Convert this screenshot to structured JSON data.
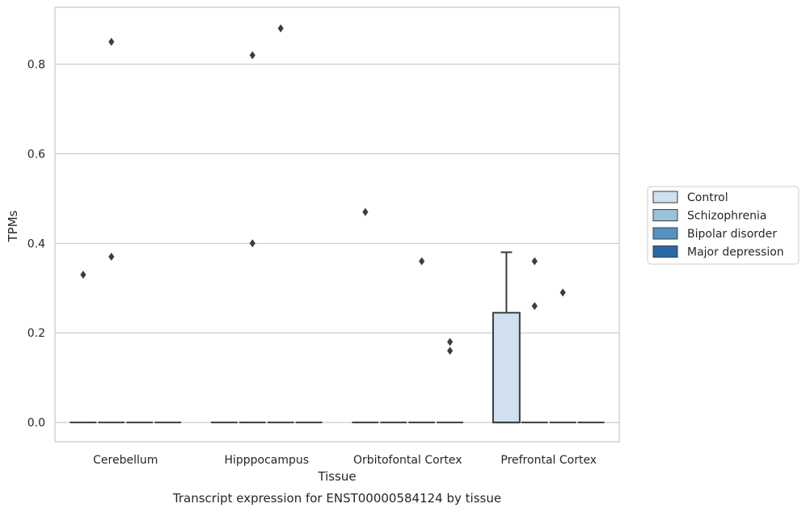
{
  "chart_data": {
    "type": "box",
    "title": "Transcript expression for ENST00000584124 by tissue",
    "xlabel": "Tissue",
    "ylabel": "TPMs",
    "ylim": [
      -0.043,
      0.927
    ],
    "yticks": [
      "0.0",
      "0.2",
      "0.4",
      "0.6",
      "0.8"
    ],
    "ytick_values": [
      0.0,
      0.2,
      0.4,
      0.6,
      0.8
    ],
    "grid": true,
    "legend_position": "right",
    "categories": [
      "Cerebellum",
      "Hipppocampus",
      "Orbitofontal Cortex",
      "Prefrontal Cortex"
    ],
    "series": [
      {
        "name": "Control",
        "color": "#d0e0f0",
        "boxes": [
          {
            "q1": 0,
            "median": 0,
            "q3": 0,
            "whisker_low": 0,
            "whisker_high": 0,
            "outliers": [
              0.33
            ]
          },
          {
            "q1": 0,
            "median": 0,
            "q3": 0,
            "whisker_low": 0,
            "whisker_high": 0,
            "outliers": []
          },
          {
            "q1": 0,
            "median": 0,
            "q3": 0,
            "whisker_low": 0,
            "whisker_high": 0,
            "outliers": [
              0.47
            ]
          },
          {
            "q1": 0,
            "median": 0,
            "q3": 0.245,
            "whisker_low": 0,
            "whisker_high": 0.38,
            "outliers": []
          }
        ]
      },
      {
        "name": "Schizophrenia",
        "color": "#9bc2dc",
        "boxes": [
          {
            "q1": 0,
            "median": 0,
            "q3": 0,
            "whisker_low": 0,
            "whisker_high": 0,
            "outliers": [
              0.85,
              0.37
            ]
          },
          {
            "q1": 0,
            "median": 0,
            "q3": 0,
            "whisker_low": 0,
            "whisker_high": 0,
            "outliers": [
              0.82,
              0.4
            ]
          },
          {
            "q1": 0,
            "median": 0,
            "q3": 0,
            "whisker_low": 0,
            "whisker_high": 0,
            "outliers": []
          },
          {
            "q1": 0,
            "median": 0,
            "q3": 0,
            "whisker_low": 0,
            "whisker_high": 0,
            "outliers": [
              0.36,
              0.26
            ]
          }
        ]
      },
      {
        "name": "Bipolar disorder",
        "color": "#5592c1",
        "boxes": [
          {
            "q1": 0,
            "median": 0,
            "q3": 0,
            "whisker_low": 0,
            "whisker_high": 0,
            "outliers": []
          },
          {
            "q1": 0,
            "median": 0,
            "q3": 0,
            "whisker_low": 0,
            "whisker_high": 0,
            "outliers": [
              0.88
            ]
          },
          {
            "q1": 0,
            "median": 0,
            "q3": 0,
            "whisker_low": 0,
            "whisker_high": 0,
            "outliers": [
              0.36
            ]
          },
          {
            "q1": 0,
            "median": 0,
            "q3": 0,
            "whisker_low": 0,
            "whisker_high": 0,
            "outliers": [
              0.29
            ]
          }
        ]
      },
      {
        "name": "Major depression",
        "color": "#2a68a4",
        "boxes": [
          {
            "q1": 0,
            "median": 0,
            "q3": 0,
            "whisker_low": 0,
            "whisker_high": 0,
            "outliers": []
          },
          {
            "q1": 0,
            "median": 0,
            "q3": 0,
            "whisker_low": 0,
            "whisker_high": 0,
            "outliers": []
          },
          {
            "q1": 0,
            "median": 0,
            "q3": 0,
            "whisker_low": 0,
            "whisker_high": 0,
            "outliers": [
              0.18,
              0.16
            ]
          },
          {
            "q1": 0,
            "median": 0,
            "q3": 0,
            "whisker_low": 0,
            "whisker_high": 0,
            "outliers": []
          }
        ]
      }
    ]
  }
}
